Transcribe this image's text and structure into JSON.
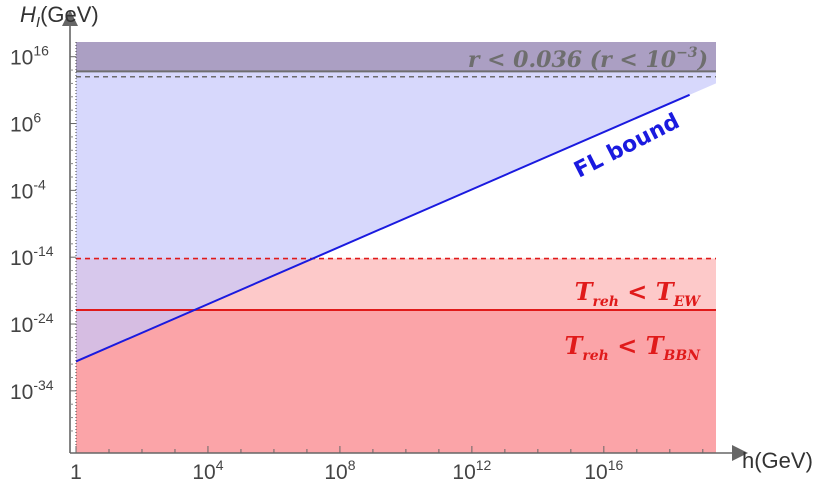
{
  "chart_data": {
    "type": "line",
    "xscale": "log",
    "yscale": "log",
    "xlim_exp": [
      0,
      19.4
    ],
    "ylim_exp": [
      -43.3,
      18.2
    ],
    "xlabel": "h(GeV)",
    "ylabel": {
      "main": "H",
      "sub": "I",
      "unit": "(GeV)"
    },
    "xticks": [
      {
        "exp": 0,
        "base": "1",
        "power": ""
      },
      {
        "exp": 4,
        "base": "10",
        "power": "4"
      },
      {
        "exp": 8,
        "base": "10",
        "power": "8"
      },
      {
        "exp": 12,
        "base": "10",
        "power": "12"
      },
      {
        "exp": 16,
        "base": "10",
        "power": "16"
      }
    ],
    "yticks": [
      {
        "exp": 16,
        "base": "10",
        "power": "16"
      },
      {
        "exp": 6,
        "base": "10",
        "power": "6"
      },
      {
        "exp": -4,
        "base": "10",
        "power": "-4"
      },
      {
        "exp": -14,
        "base": "10",
        "power": "-14"
      },
      {
        "exp": -24,
        "base": "10",
        "power": "-24"
      },
      {
        "exp": -34,
        "base": "10",
        "power": "-34"
      }
    ],
    "series": [
      {
        "name": "FL bound",
        "x_exp": [
          0,
          18.6
        ],
        "y_exp": [
          -29.6,
          10.3
        ],
        "color": "#1a1adf"
      }
    ],
    "bounds": [
      {
        "y_exp": 13.8,
        "style": "solid",
        "color": "#6e6e6e"
      },
      {
        "y_exp": 13.0,
        "style": "dashed",
        "color": "#6e6e6e"
      },
      {
        "y_exp": -14.2,
        "style": "dashed",
        "color": "#e01a1a"
      },
      {
        "y_exp": -21.9,
        "style": "solid",
        "color": "#e01a1a"
      }
    ],
    "labels": {
      "r_bound": {
        "pre": "r < 0.036 (r < 10",
        "sup": "−3",
        "post": ")",
        "color": "#6e6e6e"
      },
      "fl": {
        "text": "FL bound"
      },
      "t_ew": {
        "t": "T",
        "sub1": "reh",
        "mid": " < T",
        "sub2": "EW",
        "color": "#e01a1a"
      },
      "t_bbn": {
        "t": "T",
        "sub1": "reh",
        "mid": " < T",
        "sub2": "BBN",
        "color": "#e01a1a"
      }
    },
    "colors": {
      "blue_region": "#c6c8fb",
      "gray_region": "#ab9fc3",
      "red_light": "#fdc9c9",
      "red_dark": "#fba4a8"
    }
  }
}
